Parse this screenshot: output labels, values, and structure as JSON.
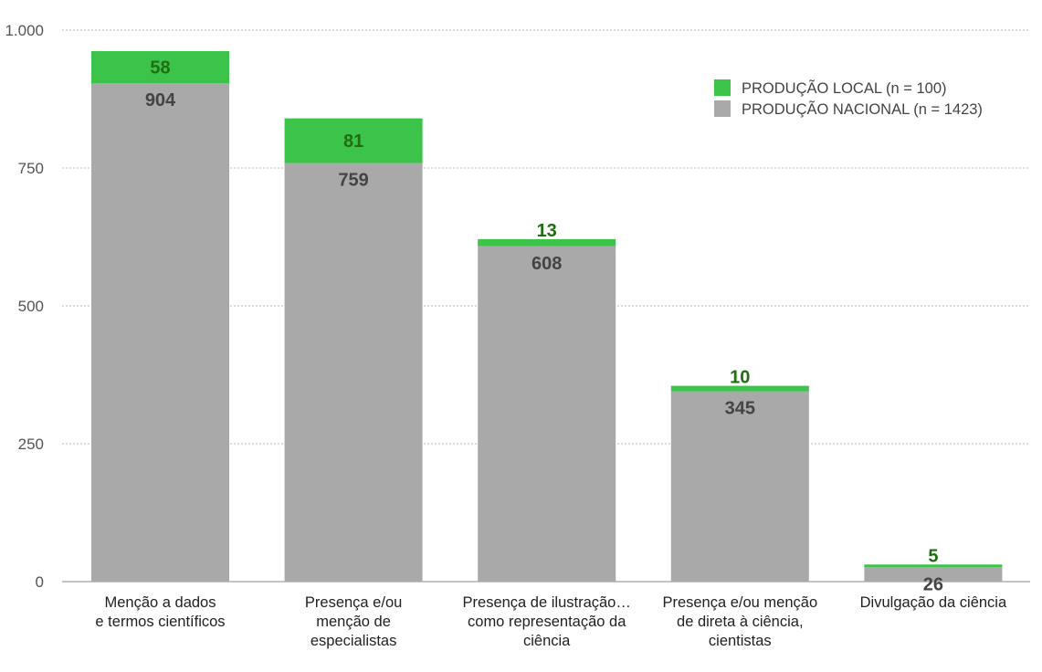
{
  "chart_data": {
    "type": "bar",
    "stacked": true,
    "categories": [
      [
        "Menção a dados",
        "e termos científicos"
      ],
      [
        "Presença e/ou",
        "menção de",
        "especialistas"
      ],
      [
        "Presença de ilustração…",
        "como representação da",
        "ciência"
      ],
      [
        "Presença e/ou menção",
        "de direta à ciência,",
        "cientistas"
      ],
      [
        "Divulgação da ciência"
      ]
    ],
    "series": [
      {
        "name": "PRODUÇÃO NACIONAL (n = 1423)",
        "color": "#a9a9a9",
        "label_color": "#444444",
        "values": [
          904,
          759,
          608,
          345,
          26
        ]
      },
      {
        "name": "PRODUÇÃO LOCAL (n = 100)",
        "color": "#3cc34a",
        "label_color": "#1f6e12",
        "values": [
          58,
          81,
          13,
          10,
          5
        ]
      }
    ],
    "legend_order": [
      1,
      0
    ],
    "ylim": [
      0,
      1000
    ],
    "yticks": [
      0,
      250,
      500,
      750,
      1000
    ],
    "ytick_labels": [
      "0",
      "250",
      "500",
      "750",
      "1.000"
    ],
    "grid": true,
    "legend_position": "top-right",
    "title": "",
    "xlabel": "",
    "ylabel": ""
  }
}
